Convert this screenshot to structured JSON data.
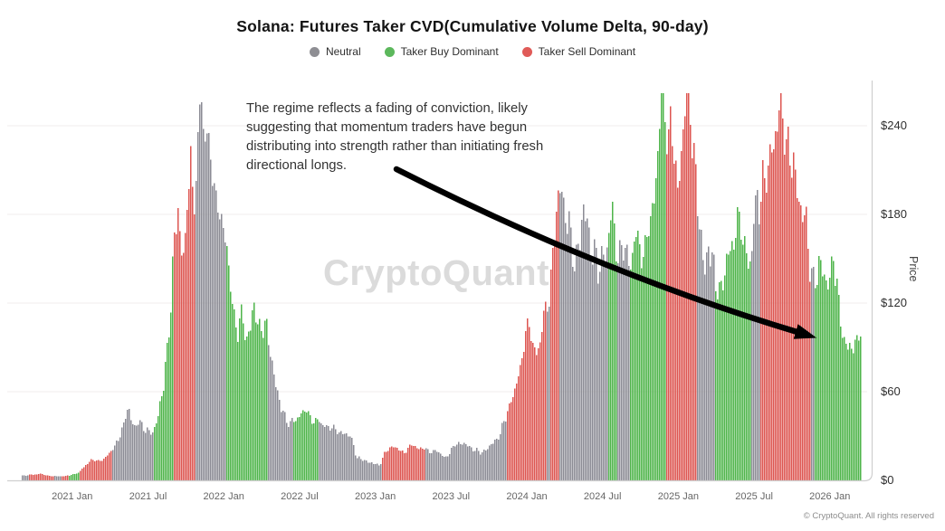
{
  "header": {
    "title": "Solana: Futures Taker CVD(Cumulative Volume Delta, 90-day)"
  },
  "legend": {
    "items": [
      {
        "label": "Neutral",
        "key": "N",
        "color": "#8e8e93"
      },
      {
        "label": "Taker Buy Dominant",
        "key": "B",
        "color": "#5cb85c"
      },
      {
        "label": "Taker Sell Dominant",
        "key": "S",
        "color": "#e05b58"
      }
    ]
  },
  "annotation": {
    "lines": [
      "The regime reflects a fading of conviction, likely",
      "suggesting that momentum traders have begun",
      "distributing into strength rather than initiating fresh",
      "directional longs."
    ]
  },
  "watermark": {
    "text": "CryptoQuant"
  },
  "footer": {
    "text": "© CryptoQuant. All rights reserved"
  },
  "chart_data": {
    "type": "bar",
    "title": "Solana: Futures Taker CVD(Cumulative Volume Delta, 90-day)",
    "xlabel": "",
    "ylabel": "Price",
    "ylim": [
      0,
      265
    ],
    "grid": "horizontal-faint",
    "legend_position": "top-center",
    "y_ticks": [
      {
        "label": "$0",
        "value": 0
      },
      {
        "label": "$60",
        "value": 60
      },
      {
        "label": "$120",
        "value": 120
      },
      {
        "label": "$180",
        "value": 180
      },
      {
        "label": "$240",
        "value": 240
      }
    ],
    "x_ticks": [
      {
        "label": "2021 Jan",
        "date": "2021-01-01"
      },
      {
        "label": "2021 Jul",
        "date": "2021-07-01"
      },
      {
        "label": "2022 Jan",
        "date": "2022-01-01"
      },
      {
        "label": "2022 Jul",
        "date": "2022-07-01"
      },
      {
        "label": "2023 Jan",
        "date": "2023-01-01"
      },
      {
        "label": "2023 Jul",
        "date": "2023-07-01"
      },
      {
        "label": "2024 Jan",
        "date": "2024-01-01"
      },
      {
        "label": "2024 Jul",
        "date": "2024-07-01"
      },
      {
        "label": "2025 Jan",
        "date": "2025-01-01"
      },
      {
        "label": "2025 Jul",
        "date": "2025-07-01"
      },
      {
        "label": "2026 Jan",
        "date": "2026-01-01"
      }
    ],
    "time_start": "2020-09-01",
    "regime_colors": {
      "N": "#8b8b94",
      "B": "#4eb44a",
      "S": "#dd5550"
    },
    "anchors": [
      [
        "2020-09-01",
        3,
        "N"
      ],
      [
        "2020-09-18",
        3.5,
        "S"
      ],
      [
        "2020-10-12",
        4.5,
        "S"
      ],
      [
        "2020-11-04",
        3,
        "S"
      ],
      [
        "2020-11-18",
        2.6,
        "N"
      ],
      [
        "2020-12-04",
        2.8,
        "S"
      ],
      [
        "2020-12-22",
        3.2,
        "B"
      ],
      [
        "2021-01-08",
        4.5,
        "B"
      ],
      [
        "2021-01-18",
        5.5,
        "S"
      ],
      [
        "2021-02-01",
        10,
        "S"
      ],
      [
        "2021-02-14",
        14,
        "S"
      ],
      [
        "2021-03-01",
        13,
        "S"
      ],
      [
        "2021-03-14",
        14,
        "S"
      ],
      [
        "2021-03-25",
        16,
        "S"
      ],
      [
        "2021-04-05",
        21,
        "N"
      ],
      [
        "2021-04-18",
        27,
        "N"
      ],
      [
        "2021-05-01",
        36,
        "N"
      ],
      [
        "2021-05-12",
        52,
        "N"
      ],
      [
        "2021-05-20",
        38,
        "N"
      ],
      [
        "2021-05-28",
        33,
        "N"
      ],
      [
        "2021-06-08",
        40,
        "N"
      ],
      [
        "2021-06-20",
        35,
        "N"
      ],
      [
        "2021-07-01",
        32,
        "N"
      ],
      [
        "2021-07-12",
        34,
        "B"
      ],
      [
        "2021-07-24",
        42,
        "B"
      ],
      [
        "2021-08-06",
        60,
        "B"
      ],
      [
        "2021-08-16",
        90,
        "B"
      ],
      [
        "2021-08-24",
        120,
        "B"
      ],
      [
        "2021-08-28",
        140,
        "S"
      ],
      [
        "2021-09-04",
        165,
        "S"
      ],
      [
        "2021-09-11",
        190,
        "S"
      ],
      [
        "2021-09-18",
        160,
        "S"
      ],
      [
        "2021-09-26",
        145,
        "S"
      ],
      [
        "2021-10-04",
        185,
        "S"
      ],
      [
        "2021-10-11",
        205,
        "S"
      ],
      [
        "2021-10-16",
        185,
        "S"
      ],
      [
        "2021-10-20",
        190,
        "N"
      ],
      [
        "2021-10-28",
        220,
        "N"
      ],
      [
        "2021-11-06",
        258,
        "N"
      ],
      [
        "2021-11-13",
        235,
        "N"
      ],
      [
        "2021-11-19",
        248,
        "N"
      ],
      [
        "2021-11-27",
        215,
        "N"
      ],
      [
        "2021-12-05",
        195,
        "N"
      ],
      [
        "2021-12-13",
        170,
        "N"
      ],
      [
        "2021-12-21",
        186,
        "N"
      ],
      [
        "2021-12-29",
        160,
        "N"
      ],
      [
        "2022-01-06",
        152,
        "B"
      ],
      [
        "2022-01-15",
        138,
        "B"
      ],
      [
        "2022-01-24",
        112,
        "B"
      ],
      [
        "2022-02-04",
        98,
        "B"
      ],
      [
        "2022-02-14",
        108,
        "B"
      ],
      [
        "2022-02-23",
        92,
        "B"
      ],
      [
        "2022-03-04",
        100,
        "B"
      ],
      [
        "2022-03-13",
        118,
        "B"
      ],
      [
        "2022-03-22",
        104,
        "B"
      ],
      [
        "2022-04-01",
        108,
        "B"
      ],
      [
        "2022-04-08",
        100,
        "B"
      ],
      [
        "2022-04-14",
        95,
        "N"
      ],
      [
        "2022-04-22",
        82,
        "N"
      ],
      [
        "2022-05-04",
        60,
        "N"
      ],
      [
        "2022-05-15",
        48,
        "N"
      ],
      [
        "2022-05-26",
        44,
        "N"
      ],
      [
        "2022-06-06",
        38,
        "N"
      ],
      [
        "2022-06-14",
        39,
        "B"
      ],
      [
        "2022-06-24",
        41,
        "B"
      ],
      [
        "2022-07-06",
        44,
        "B"
      ],
      [
        "2022-07-16",
        45,
        "B"
      ],
      [
        "2022-07-27",
        42,
        "B"
      ],
      [
        "2022-08-07",
        41,
        "B"
      ],
      [
        "2022-08-16",
        39,
        "N"
      ],
      [
        "2022-09-01",
        36,
        "N"
      ],
      [
        "2022-09-15",
        33,
        "N"
      ],
      [
        "2022-10-01",
        34,
        "N"
      ],
      [
        "2022-10-16",
        31,
        "N"
      ],
      [
        "2022-11-01",
        30,
        "N"
      ],
      [
        "2022-11-09",
        22,
        "N"
      ],
      [
        "2022-11-15",
        14,
        "N"
      ],
      [
        "2022-12-01",
        14,
        "N"
      ],
      [
        "2022-12-16",
        12,
        "N"
      ],
      [
        "2023-01-02",
        11,
        "N"
      ],
      [
        "2023-01-10",
        10,
        "N"
      ],
      [
        "2023-01-16",
        14,
        "S"
      ],
      [
        "2023-02-01",
        21,
        "S"
      ],
      [
        "2023-02-12",
        23,
        "S"
      ],
      [
        "2023-02-23",
        21,
        "S"
      ],
      [
        "2023-03-07",
        19,
        "S"
      ],
      [
        "2023-03-19",
        21,
        "S"
      ],
      [
        "2023-04-01",
        23,
        "S"
      ],
      [
        "2023-04-11",
        21,
        "S"
      ],
      [
        "2023-04-19",
        22,
        "S"
      ],
      [
        "2023-04-26",
        21,
        "N"
      ],
      [
        "2023-05-09",
        20,
        "N"
      ],
      [
        "2023-05-23",
        19,
        "N"
      ],
      [
        "2023-06-06",
        17,
        "N"
      ],
      [
        "2023-06-15",
        15,
        "N"
      ],
      [
        "2023-06-27",
        18,
        "N"
      ],
      [
        "2023-07-10",
        26,
        "N"
      ],
      [
        "2023-07-23",
        24,
        "N"
      ],
      [
        "2023-08-06",
        23,
        "N"
      ],
      [
        "2023-08-19",
        21,
        "N"
      ],
      [
        "2023-09-03",
        19,
        "N"
      ],
      [
        "2023-09-17",
        20,
        "N"
      ],
      [
        "2023-10-01",
        22,
        "N"
      ],
      [
        "2023-10-15",
        26,
        "N"
      ],
      [
        "2023-10-27",
        31,
        "N"
      ],
      [
        "2023-11-07",
        40,
        "N"
      ],
      [
        "2023-11-12",
        46,
        "S"
      ],
      [
        "2023-11-22",
        55,
        "S"
      ],
      [
        "2023-12-04",
        62,
        "S"
      ],
      [
        "2023-12-14",
        72,
        "S"
      ],
      [
        "2023-12-24",
        95,
        "S"
      ],
      [
        "2024-01-04",
        100,
        "S"
      ],
      [
        "2024-01-14",
        92,
        "S"
      ],
      [
        "2024-01-24",
        88,
        "S"
      ],
      [
        "2024-02-02",
        96,
        "S"
      ],
      [
        "2024-02-08",
        104,
        "S"
      ],
      [
        "2024-02-12",
        110,
        "S"
      ],
      [
        "2024-02-15",
        112,
        "N"
      ],
      [
        "2024-02-20",
        118,
        "N"
      ],
      [
        "2024-02-24",
        125,
        "S"
      ],
      [
        "2024-03-04",
        152,
        "S"
      ],
      [
        "2024-03-12",
        182,
        "S"
      ],
      [
        "2024-03-16",
        192,
        "N"
      ],
      [
        "2024-03-22",
        202,
        "N"
      ],
      [
        "2024-03-28",
        190,
        "N"
      ],
      [
        "2024-04-04",
        178,
        "N"
      ],
      [
        "2024-04-14",
        158,
        "N"
      ],
      [
        "2024-04-24",
        145,
        "N"
      ],
      [
        "2024-05-04",
        152,
        "N"
      ],
      [
        "2024-05-14",
        172,
        "N"
      ],
      [
        "2024-05-22",
        178,
        "N"
      ],
      [
        "2024-05-30",
        165,
        "N"
      ],
      [
        "2024-06-08",
        152,
        "N"
      ],
      [
        "2024-06-18",
        142,
        "N"
      ],
      [
        "2024-06-28",
        148,
        "N"
      ],
      [
        "2024-07-08",
        146,
        "N"
      ],
      [
        "2024-07-14",
        150,
        "B"
      ],
      [
        "2024-07-22",
        184,
        "B"
      ],
      [
        "2024-07-30",
        165,
        "B"
      ],
      [
        "2024-08-04",
        155,
        "N"
      ],
      [
        "2024-08-14",
        150,
        "N"
      ],
      [
        "2024-08-22",
        162,
        "N"
      ],
      [
        "2024-09-01",
        145,
        "N"
      ],
      [
        "2024-09-05",
        142,
        "B"
      ],
      [
        "2024-09-14",
        150,
        "B"
      ],
      [
        "2024-09-26",
        158,
        "B"
      ],
      [
        "2024-10-08",
        152,
        "B"
      ],
      [
        "2024-10-20",
        172,
        "B"
      ],
      [
        "2024-11-01",
        188,
        "B"
      ],
      [
        "2024-11-10",
        215,
        "B"
      ],
      [
        "2024-11-20",
        250,
        "B"
      ],
      [
        "2024-11-24",
        252,
        "B"
      ],
      [
        "2024-11-28",
        240,
        "S"
      ],
      [
        "2024-12-06",
        230,
        "S"
      ],
      [
        "2024-12-13",
        242,
        "S"
      ],
      [
        "2024-12-20",
        215,
        "S"
      ],
      [
        "2024-12-28",
        198,
        "S"
      ],
      [
        "2025-01-06",
        220,
        "S"
      ],
      [
        "2025-01-14",
        250,
        "S"
      ],
      [
        "2025-01-20",
        258,
        "S"
      ],
      [
        "2025-01-28",
        240,
        "S"
      ],
      [
        "2025-02-04",
        222,
        "S"
      ],
      [
        "2025-02-10",
        205,
        "S"
      ],
      [
        "2025-02-14",
        192,
        "N"
      ],
      [
        "2025-02-20",
        170,
        "N"
      ],
      [
        "2025-02-26",
        152,
        "N"
      ],
      [
        "2025-03-04",
        142,
        "N"
      ],
      [
        "2025-03-10",
        168,
        "N"
      ],
      [
        "2025-03-16",
        150,
        "N"
      ],
      [
        "2025-03-22",
        138,
        "N"
      ],
      [
        "2025-03-27",
        128,
        "B"
      ],
      [
        "2025-04-06",
        122,
        "B"
      ],
      [
        "2025-04-16",
        134,
        "B"
      ],
      [
        "2025-04-26",
        146,
        "B"
      ],
      [
        "2025-05-08",
        164,
        "B"
      ],
      [
        "2025-05-18",
        176,
        "B"
      ],
      [
        "2025-05-28",
        162,
        "B"
      ],
      [
        "2025-06-08",
        150,
        "B"
      ],
      [
        "2025-06-18",
        144,
        "B"
      ],
      [
        "2025-06-24",
        148,
        "N"
      ],
      [
        "2025-07-01",
        175,
        "N"
      ],
      [
        "2025-07-06",
        200,
        "N"
      ],
      [
        "2025-07-09",
        195,
        "N"
      ],
      [
        "2025-07-12",
        190,
        "S"
      ],
      [
        "2025-07-20",
        205,
        "S"
      ],
      [
        "2025-07-30",
        195,
        "S"
      ],
      [
        "2025-08-10",
        215,
        "S"
      ],
      [
        "2025-08-20",
        228,
        "S"
      ],
      [
        "2025-09-01",
        240,
        "S"
      ],
      [
        "2025-09-10",
        248,
        "S"
      ],
      [
        "2025-09-18",
        232,
        "S"
      ],
      [
        "2025-09-28",
        215,
        "S"
      ],
      [
        "2025-10-08",
        195,
        "S"
      ],
      [
        "2025-10-18",
        182,
        "S"
      ],
      [
        "2025-10-28",
        172,
        "S"
      ],
      [
        "2025-11-06",
        158,
        "S"
      ],
      [
        "2025-11-10",
        150,
        "S"
      ],
      [
        "2025-11-13",
        145,
        "N"
      ],
      [
        "2025-11-19",
        140,
        "N"
      ],
      [
        "2025-11-22",
        138,
        "B"
      ],
      [
        "2025-12-02",
        142,
        "B"
      ],
      [
        "2025-12-12",
        138,
        "B"
      ],
      [
        "2025-12-22",
        132,
        "B"
      ],
      [
        "2026-01-01",
        128,
        "B"
      ],
      [
        "2026-01-08",
        144,
        "B"
      ],
      [
        "2026-01-16",
        132,
        "B"
      ],
      [
        "2026-01-24",
        115,
        "B"
      ],
      [
        "2026-02-02",
        96,
        "B"
      ],
      [
        "2026-02-10",
        85,
        "B"
      ],
      [
        "2026-02-18",
        92,
        "B"
      ],
      [
        "2026-02-26",
        87,
        "B"
      ],
      [
        "2026-03-06",
        90,
        "B"
      ],
      [
        "2026-03-14",
        97,
        "B"
      ]
    ]
  }
}
